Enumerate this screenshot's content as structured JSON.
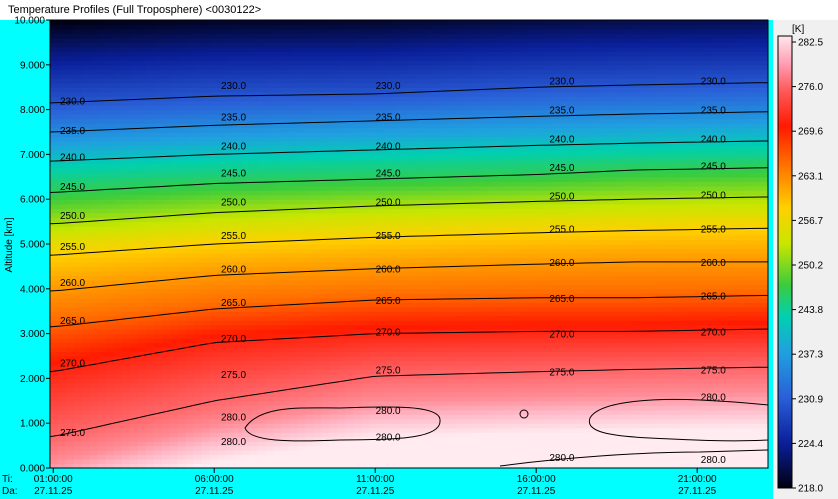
{
  "window": {
    "title": "Temperature Profiles (Full Troposphere)  <0030122>"
  },
  "chart_data": {
    "type": "heatmap",
    "title": "",
    "xlabel": "",
    "ylabel": "Altitude [km]",
    "ylim": [
      0,
      10
    ],
    "xlim": [
      "01:00:00",
      "23:59:00"
    ],
    "y_ticks": [
      "0.000",
      "1.000",
      "2.000",
      "3.000",
      "4.000",
      "5.000",
      "6.000",
      "7.000",
      "8.000",
      "9.000",
      "10.000"
    ],
    "x_ticks": [
      {
        "time": "01:00:00",
        "date": "27.11.25"
      },
      {
        "time": "06:00:00",
        "date": "27.11.25"
      },
      {
        "time": "11:00:00",
        "date": "27.11.25"
      },
      {
        "time": "16:00:00",
        "date": "27.11.25"
      },
      {
        "time": "21:00:00",
        "date": "27.11.25"
      }
    ],
    "row_labels": {
      "time": "Ti:",
      "date": "Da:"
    },
    "colorbar": {
      "unit": "[K]",
      "min": 218.0,
      "max": 282.5,
      "ticks": [
        "282.5",
        "276.0",
        "269.6",
        "263.1",
        "256.7",
        "250.2",
        "243.8",
        "237.3",
        "230.9",
        "224.4",
        "218.0"
      ]
    },
    "contours": [
      {
        "level": "230.0",
        "altitude_km": [
          8.15,
          8.3,
          8.35,
          8.5,
          8.55,
          8.6
        ]
      },
      {
        "level": "235.0",
        "altitude_km": [
          7.5,
          7.65,
          7.75,
          7.85,
          7.9,
          7.95
        ]
      },
      {
        "level": "240.0",
        "altitude_km": [
          6.85,
          7.0,
          7.1,
          7.2,
          7.25,
          7.3
        ]
      },
      {
        "level": "245.0",
        "altitude_km": [
          6.15,
          6.35,
          6.45,
          6.55,
          6.65,
          6.7
        ]
      },
      {
        "level": "250.0",
        "altitude_km": [
          5.45,
          5.7,
          5.85,
          5.95,
          6.0,
          6.05
        ]
      },
      {
        "level": "255.0",
        "altitude_km": [
          4.75,
          5.0,
          5.15,
          5.25,
          5.3,
          5.35
        ]
      },
      {
        "level": "260.0",
        "altitude_km": [
          3.95,
          4.3,
          4.45,
          4.55,
          4.6,
          4.6
        ]
      },
      {
        "level": "265.0",
        "altitude_km": [
          3.15,
          3.55,
          3.75,
          3.8,
          3.8,
          3.85
        ]
      },
      {
        "level": "270.0",
        "altitude_km": [
          2.15,
          2.8,
          3.0,
          3.05,
          3.05,
          3.1
        ]
      },
      {
        "level": "275.0",
        "altitude_km": [
          0.7,
          1.5,
          2.05,
          2.15,
          2.2,
          2.25
        ]
      }
    ],
    "contour_labels": [
      {
        "text": "230.0",
        "time_h": 1.6,
        "alt": 8.2
      },
      {
        "text": "230.0",
        "time_h": 6.6,
        "alt": 8.55
      },
      {
        "text": "230.0",
        "time_h": 11.4,
        "alt": 8.55
      },
      {
        "text": "230.0",
        "time_h": 16.8,
        "alt": 8.65
      },
      {
        "text": "230.0",
        "time_h": 21.5,
        "alt": 8.65
      },
      {
        "text": "235.0",
        "time_h": 1.6,
        "alt": 7.55
      },
      {
        "text": "235.0",
        "time_h": 6.6,
        "alt": 7.85
      },
      {
        "text": "235.0",
        "time_h": 11.4,
        "alt": 7.85
      },
      {
        "text": "235.0",
        "time_h": 16.8,
        "alt": 8.0
      },
      {
        "text": "235.0",
        "time_h": 21.5,
        "alt": 8.0
      },
      {
        "text": "240.0",
        "time_h": 1.6,
        "alt": 6.95
      },
      {
        "text": "240.0",
        "time_h": 6.6,
        "alt": 7.2
      },
      {
        "text": "240.0",
        "time_h": 11.4,
        "alt": 7.2
      },
      {
        "text": "240.0",
        "time_h": 16.8,
        "alt": 7.35
      },
      {
        "text": "240.0",
        "time_h": 21.5,
        "alt": 7.35
      },
      {
        "text": "245.0",
        "time_h": 1.6,
        "alt": 6.3
      },
      {
        "text": "245.0",
        "time_h": 6.6,
        "alt": 6.6
      },
      {
        "text": "245.0",
        "time_h": 11.4,
        "alt": 6.6
      },
      {
        "text": "245.0",
        "time_h": 16.8,
        "alt": 6.72
      },
      {
        "text": "245.0",
        "time_h": 21.5,
        "alt": 6.75
      },
      {
        "text": "250.0",
        "time_h": 1.6,
        "alt": 5.65
      },
      {
        "text": "250.0",
        "time_h": 6.6,
        "alt": 5.95
      },
      {
        "text": "250.0",
        "time_h": 11.4,
        "alt": 5.95
      },
      {
        "text": "250.0",
        "time_h": 16.8,
        "alt": 6.08
      },
      {
        "text": "250.0",
        "time_h": 21.5,
        "alt": 6.1
      },
      {
        "text": "255.0",
        "time_h": 1.6,
        "alt": 4.95
      },
      {
        "text": "255.0",
        "time_h": 6.6,
        "alt": 5.2
      },
      {
        "text": "255.0",
        "time_h": 11.4,
        "alt": 5.2
      },
      {
        "text": "255.0",
        "time_h": 16.8,
        "alt": 5.35
      },
      {
        "text": "255.0",
        "time_h": 21.5,
        "alt": 5.35
      },
      {
        "text": "260.0",
        "time_h": 1.6,
        "alt": 4.15
      },
      {
        "text": "260.0",
        "time_h": 6.6,
        "alt": 4.45
      },
      {
        "text": "260.0",
        "time_h": 11.4,
        "alt": 4.45
      },
      {
        "text": "260.0",
        "time_h": 16.8,
        "alt": 4.6
      },
      {
        "text": "260.0",
        "time_h": 21.5,
        "alt": 4.6
      },
      {
        "text": "265.0",
        "time_h": 1.6,
        "alt": 3.3
      },
      {
        "text": "265.0",
        "time_h": 6.6,
        "alt": 3.7
      },
      {
        "text": "265.0",
        "time_h": 11.4,
        "alt": 3.75
      },
      {
        "text": "265.0",
        "time_h": 16.8,
        "alt": 3.8
      },
      {
        "text": "265.0",
        "time_h": 21.5,
        "alt": 3.85
      },
      {
        "text": "270.0",
        "time_h": 1.6,
        "alt": 2.35
      },
      {
        "text": "270.0",
        "time_h": 6.6,
        "alt": 2.9
      },
      {
        "text": "270.0",
        "time_h": 11.4,
        "alt": 3.05
      },
      {
        "text": "270.0",
        "time_h": 16.8,
        "alt": 3.0
      },
      {
        "text": "270.0",
        "time_h": 21.5,
        "alt": 3.05
      },
      {
        "text": "275.0",
        "time_h": 1.6,
        "alt": 0.8
      },
      {
        "text": "275.0",
        "time_h": 6.6,
        "alt": 2.1
      },
      {
        "text": "275.0",
        "time_h": 11.4,
        "alt": 2.2
      },
      {
        "text": "275.0",
        "time_h": 16.8,
        "alt": 2.15
      },
      {
        "text": "275.0",
        "time_h": 21.5,
        "alt": 2.2
      },
      {
        "text": "280.0",
        "time_h": 6.6,
        "alt": 1.15
      },
      {
        "text": "280.0",
        "time_h": 6.6,
        "alt": 0.6
      },
      {
        "text": "280.0",
        "time_h": 11.4,
        "alt": 1.3
      },
      {
        "text": "280.0",
        "time_h": 11.4,
        "alt": 0.7
      },
      {
        "text": "280.0",
        "time_h": 21.5,
        "alt": 1.6
      },
      {
        "text": "280.0",
        "time_h": 16.8,
        "alt": 0.25
      },
      {
        "text": "280.0",
        "time_h": 21.5,
        "alt": 0.2
      }
    ]
  }
}
